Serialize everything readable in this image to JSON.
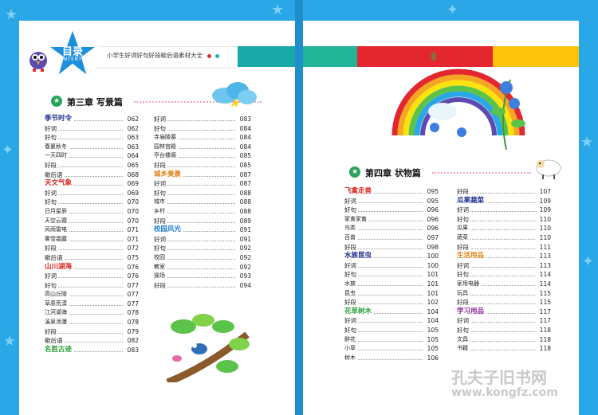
{
  "header": {
    "logo_title": "目录",
    "logo_sub": "CONTENTS",
    "subtitle": "小学生好词好句好段歇后语素材大全"
  },
  "colors": {
    "background": "#29a7e6",
    "bar_green": "#23b597",
    "bar_teal": "#19a9a7",
    "bar_red": "#e3262f",
    "bar_yellow": "#fbc40b",
    "chapter_icon": "#29a35a"
  },
  "chapter3": {
    "title": "第三章  写景篇"
  },
  "chapter4": {
    "title": "第四章  状物篇"
  },
  "col1": [
    {
      "label": "季节时令",
      "page": "062",
      "type": "hd",
      "color": "#1a2a8a"
    },
    {
      "label": "好词",
      "page": "062",
      "type": "n"
    },
    {
      "label": "好句",
      "page": "063",
      "type": "n"
    },
    {
      "label": "春夏秋冬",
      "page": "063",
      "type": "sub"
    },
    {
      "label": "一天四时",
      "page": "064",
      "type": "sub"
    },
    {
      "label": "好段",
      "page": "065",
      "type": "n"
    },
    {
      "label": "歇后语",
      "page": "068",
      "type": "n"
    },
    {
      "label": "天文气象",
      "page": "069",
      "type": "hd",
      "color": "#d8261f"
    },
    {
      "label": "好词",
      "page": "069",
      "type": "n"
    },
    {
      "label": "好句",
      "page": "070",
      "type": "n"
    },
    {
      "label": "日月星辰",
      "page": "070",
      "type": "sub"
    },
    {
      "label": "天空云霞",
      "page": "070",
      "type": "sub"
    },
    {
      "label": "风雨雷电",
      "page": "071",
      "type": "sub"
    },
    {
      "label": "雾雪霜露",
      "page": "071",
      "type": "sub"
    },
    {
      "label": "好段",
      "page": "072",
      "type": "n"
    },
    {
      "label": "歇后语",
      "page": "075",
      "type": "n"
    },
    {
      "label": "山川湖海",
      "page": "076",
      "type": "hd",
      "color": "#d8261f"
    },
    {
      "label": "好词",
      "page": "076",
      "type": "n"
    },
    {
      "label": "好句",
      "page": "077",
      "type": "n"
    },
    {
      "label": "高山丘陵",
      "page": "077",
      "type": "sub"
    },
    {
      "label": "草原荒漠",
      "page": "077",
      "type": "sub"
    },
    {
      "label": "江河湖海",
      "page": "078",
      "type": "sub"
    },
    {
      "label": "溪泉池瀑",
      "page": "078",
      "type": "sub"
    },
    {
      "label": "好段",
      "page": "079",
      "type": "n"
    },
    {
      "label": "歇后语",
      "page": "082",
      "type": "n"
    },
    {
      "label": "名胜古迹",
      "page": "083",
      "type": "hd",
      "color": "#2a9d3a"
    }
  ],
  "col2": [
    {
      "label": "好词",
      "page": "083",
      "type": "n"
    },
    {
      "label": "好句",
      "page": "084",
      "type": "n"
    },
    {
      "label": "寺庙陵墓",
      "page": "084",
      "type": "sub"
    },
    {
      "label": "园林宫殿",
      "page": "084",
      "type": "sub"
    },
    {
      "label": "亭台楼阁",
      "page": "085",
      "type": "sub"
    },
    {
      "label": "好段",
      "page": "085",
      "type": "n"
    },
    {
      "label": "城乡美景",
      "page": "087",
      "type": "hd",
      "color": "#e07c10"
    },
    {
      "label": "好词",
      "page": "087",
      "type": "n"
    },
    {
      "label": "好句",
      "page": "088",
      "type": "n"
    },
    {
      "label": "城市",
      "page": "088",
      "type": "sub"
    },
    {
      "label": "乡村",
      "page": "088",
      "type": "sub"
    },
    {
      "label": "好段",
      "page": "089",
      "type": "n"
    },
    {
      "label": "校园风光",
      "page": "091",
      "type": "hd",
      "color": "#1f7fd0"
    },
    {
      "label": "好词",
      "page": "091",
      "type": "n"
    },
    {
      "label": "好句",
      "page": "092",
      "type": "n"
    },
    {
      "label": "校园",
      "page": "092",
      "type": "sub"
    },
    {
      "label": "教室",
      "page": "092",
      "type": "sub"
    },
    {
      "label": "操场",
      "page": "093",
      "type": "sub"
    },
    {
      "label": "好段",
      "page": "094",
      "type": "n"
    }
  ],
  "col3": [
    {
      "label": "飞禽走兽",
      "page": "095",
      "type": "hd",
      "color": "#d8261f"
    },
    {
      "label": "好词",
      "page": "095",
      "type": "n"
    },
    {
      "label": "好句",
      "page": "096",
      "type": "n"
    },
    {
      "label": "家禽家畜",
      "page": "096",
      "type": "sub"
    },
    {
      "label": "鸟类",
      "page": "096",
      "type": "sub"
    },
    {
      "label": "百兽",
      "page": "097",
      "type": "sub"
    },
    {
      "label": "好段",
      "page": "098",
      "type": "n"
    },
    {
      "label": "水族昆虫",
      "page": "100",
      "type": "hd",
      "color": "#1a2a8a"
    },
    {
      "label": "好词",
      "page": "100",
      "type": "n"
    },
    {
      "label": "好句",
      "page": "101",
      "type": "n"
    },
    {
      "label": "水族",
      "page": "101",
      "type": "sub"
    },
    {
      "label": "昆虫",
      "page": "101",
      "type": "sub"
    },
    {
      "label": "好段",
      "page": "102",
      "type": "n"
    },
    {
      "label": "花草树木",
      "page": "104",
      "type": "hd",
      "color": "#2a9d3a"
    },
    {
      "label": "好词",
      "page": "104",
      "type": "n"
    },
    {
      "label": "好句",
      "page": "105",
      "type": "n"
    },
    {
      "label": "鲜花",
      "page": "105",
      "type": "sub"
    },
    {
      "label": "小草",
      "page": "105",
      "type": "sub"
    },
    {
      "label": "树木",
      "page": "106",
      "type": "sub"
    }
  ],
  "col4": [
    {
      "label": "好段",
      "page": "107",
      "type": "n"
    },
    {
      "label": "瓜果蔬菜",
      "page": "109",
      "type": "hd",
      "color": "#1a2a8a"
    },
    {
      "label": "好词",
      "page": "109",
      "type": "n"
    },
    {
      "label": "好句",
      "page": "110",
      "type": "n"
    },
    {
      "label": "瓜果",
      "page": "110",
      "type": "sub"
    },
    {
      "label": "蔬菜",
      "page": "110",
      "type": "sub"
    },
    {
      "label": "好段",
      "page": "111",
      "type": "n"
    },
    {
      "label": "生活用品",
      "page": "113",
      "type": "hd",
      "color": "#e07c10"
    },
    {
      "label": "好词",
      "page": "113",
      "type": "n"
    },
    {
      "label": "好句",
      "page": "114",
      "type": "n"
    },
    {
      "label": "家用电器",
      "page": "114",
      "type": "sub"
    },
    {
      "label": "玩具",
      "page": "115",
      "type": "sub"
    },
    {
      "label": "好段",
      "page": "115",
      "type": "n"
    },
    {
      "label": "学习用品",
      "page": "117",
      "type": "hd",
      "color": "#8a2a9a"
    },
    {
      "label": "好词",
      "page": "117",
      "type": "n"
    },
    {
      "label": "好句",
      "page": "118",
      "type": "n"
    },
    {
      "label": "文具",
      "page": "118",
      "type": "sub"
    },
    {
      "label": "书籍",
      "page": "118",
      "type": "sub"
    }
  ],
  "watermark": {
    "line1": "孔夫子旧书网",
    "line2": "www.kongfz.com"
  }
}
